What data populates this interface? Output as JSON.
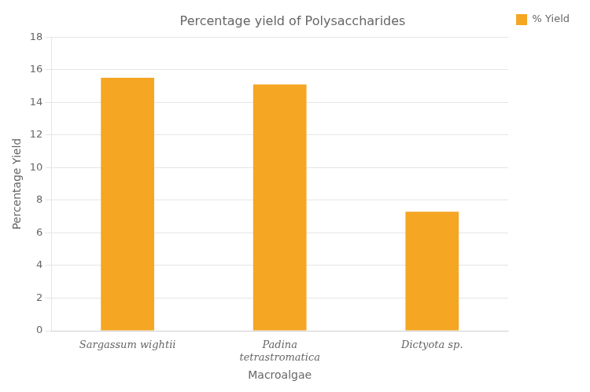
{
  "chart_data": {
    "type": "bar",
    "title": "Percentage yield of Polysaccharides",
    "xlabel": "Macroalgae",
    "ylabel": "Percentage Yield",
    "categories": [
      "Sargassum wightii",
      "Padina\ntetrastromatica",
      "Dictyota sp."
    ],
    "series": [
      {
        "name": "% Yield",
        "color": "#F5A623",
        "values": [
          15.5,
          15.1,
          7.3
        ]
      }
    ],
    "ylim": [
      0,
      18
    ],
    "yticks": [
      0,
      2,
      4,
      6,
      8,
      10,
      12,
      14,
      16,
      18
    ],
    "grid": true,
    "legend": "upper right"
  }
}
